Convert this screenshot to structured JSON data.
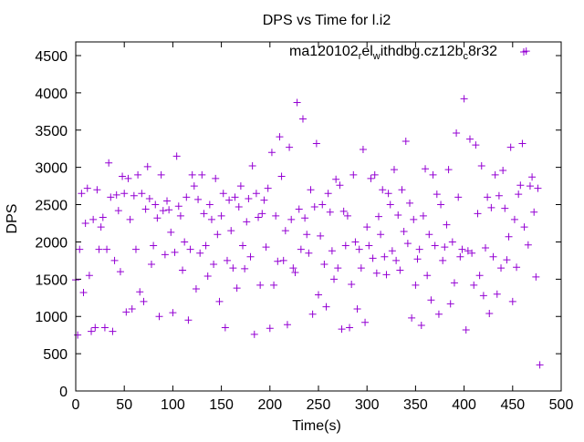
{
  "chart_data": {
    "type": "scatter",
    "title": "DPS vs Time for l.i2",
    "xlabel": "Time(s)",
    "ylabel": "DPS",
    "xlim": [
      0,
      500
    ],
    "ylim": [
      0,
      4700
    ],
    "xticks": [
      0,
      50,
      100,
      150,
      200,
      250,
      300,
      350,
      400,
      450,
      500
    ],
    "yticks": [
      0,
      500,
      1000,
      1500,
      2000,
      2500,
      3000,
      3500,
      4000,
      4500
    ],
    "grid": false,
    "legend": {
      "position": "top-right",
      "entries": [
        {
          "label_parts": [
            "ma120102",
            "r",
            "el",
            "w",
            "ithdbg.cz12b",
            "c",
            "8r32"
          ],
          "color": "#9400d3",
          "marker": "plus"
        }
      ]
    },
    "series": [
      {
        "name": "ma120102_rel_withdbg.cz12b_c8r32",
        "color": "#9400d3",
        "x_step": 2,
        "y": [
          1490,
          750,
          1900,
          2650,
          1320,
          2250,
          2720,
          1550,
          800,
          2300,
          850,
          2700,
          1900,
          2200,
          2330,
          850,
          1900,
          3060,
          2600,
          800,
          1750,
          2630,
          2420,
          1600,
          2880,
          2650,
          1060,
          2850,
          2300,
          1100,
          2620,
          1900,
          2900,
          1330,
          2650,
          1200,
          2440,
          3010,
          2580,
          1700,
          1950,
          2500,
          2320,
          1000,
          2900,
          2420,
          1830,
          2550,
          2430,
          2130,
          1050,
          1860,
          3150,
          2480,
          2350,
          1620,
          2000,
          2600,
          950,
          1900,
          2900,
          2750,
          1370,
          2570,
          1850,
          2900,
          2380,
          1950,
          1540,
          2500,
          2300,
          1700,
          2850,
          2100,
          1200,
          2350,
          2650,
          850,
          1750,
          2560,
          2150,
          1650,
          2600,
          1380,
          2470,
          2750,
          1950,
          1640,
          2270,
          2580,
          1800,
          3020,
          760,
          2650,
          2330,
          1420,
          2380,
          2560,
          1930,
          2720,
          840,
          3200,
          1420,
          2350,
          1740,
          3410,
          2880,
          1750,
          2150,
          890,
          3270,
          2300,
          1650,
          1590,
          3870,
          2440,
          1900,
          3650,
          2320,
          2100,
          1850,
          2700,
          1030,
          2470,
          3320,
          1290,
          2080,
          2500,
          1700,
          1130,
          2650,
          2400,
          1880,
          1500,
          2840,
          1650,
          2760,
          830,
          2410,
          1950,
          2350,
          850,
          1430,
          2900,
          2000,
          1100,
          1900,
          1650,
          3240,
          920,
          2200,
          1950,
          2850,
          1780,
          2900,
          1580,
          2340,
          2100,
          2700,
          1800,
          1560,
          2650,
          2500,
          1880,
          2970,
          1750,
          2360,
          1620,
          2700,
          2140,
          3350,
          1980,
          2520,
          980,
          2300,
          1420,
          1770,
          1900,
          880,
          2350,
          2980,
          1550,
          2100,
          1220,
          2900,
          1950,
          2640,
          1030,
          2500,
          1750,
          1930,
          2230,
          2970,
          1170,
          2000,
          1450,
          3460,
          2600,
          1800,
          1900,
          3920,
          820,
          1880,
          3380,
          1850,
          1420,
          3300,
          2380,
          1550,
          3020,
          1280,
          1920,
          2600,
          1040,
          2460,
          1800,
          2900,
          1300,
          2620,
          1650,
          2960,
          2450,
          1760,
          2070,
          3270,
          1200,
          2300,
          1660,
          2640,
          2760,
          3320,
          2200,
          4560,
          1960,
          2750,
          2870,
          2400,
          1530,
          2720,
          350
        ]
      }
    ]
  }
}
